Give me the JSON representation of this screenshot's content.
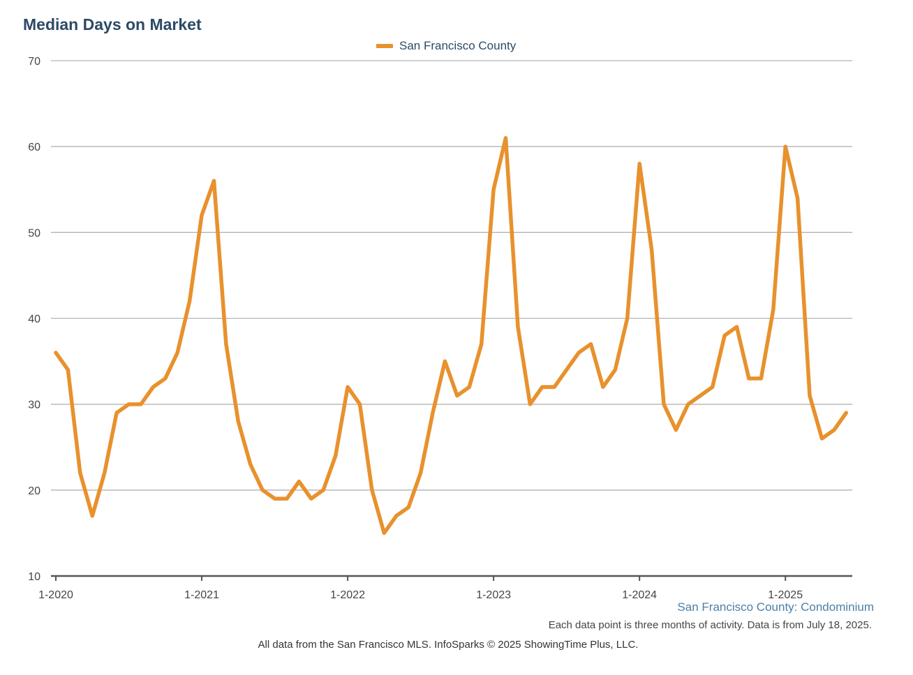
{
  "title": "Median Days on Market",
  "subtitle": "San Francisco County: Condominium",
  "note": "Each data point is three months of activity. Data is from July 18, 2025.",
  "credit": "All data from the San Francisco MLS. InfoSparks © 2025 ShowingTime Plus, LLC.",
  "colors": {
    "series": "#E8912D",
    "grid": "#b3b3b3",
    "axis": "#555555",
    "title": "#2c4a66"
  },
  "chart_data": {
    "type": "line",
    "title": "Median Days on Market",
    "xlabel": "",
    "ylabel": "",
    "x_tick_labels": [
      "1-2020",
      "1-2021",
      "1-2022",
      "1-2023",
      "1-2024",
      "1-2025"
    ],
    "y_ticks": [
      10,
      20,
      30,
      40,
      50,
      60,
      70
    ],
    "ylim": [
      10,
      70
    ],
    "grid": true,
    "legend_position": "top-center",
    "x_start": "2020-01",
    "x_end": "2025-06",
    "x_step": "monthly",
    "series": [
      {
        "name": "San Francisco County",
        "color": "#E8912D",
        "values": [
          36,
          34,
          22,
          17,
          22,
          29,
          30,
          30,
          32,
          33,
          36,
          42,
          52,
          56,
          37,
          28,
          23,
          20,
          19,
          19,
          21,
          19,
          20,
          24,
          32,
          30,
          20,
          15,
          17,
          18,
          22,
          29,
          35,
          31,
          32,
          37,
          55,
          61,
          39,
          30,
          32,
          32,
          34,
          36,
          37,
          32,
          34,
          40,
          58,
          48,
          30,
          27,
          30,
          31,
          32,
          38,
          39,
          33,
          33,
          41,
          60,
          54,
          31,
          26,
          27,
          29
        ]
      }
    ]
  }
}
